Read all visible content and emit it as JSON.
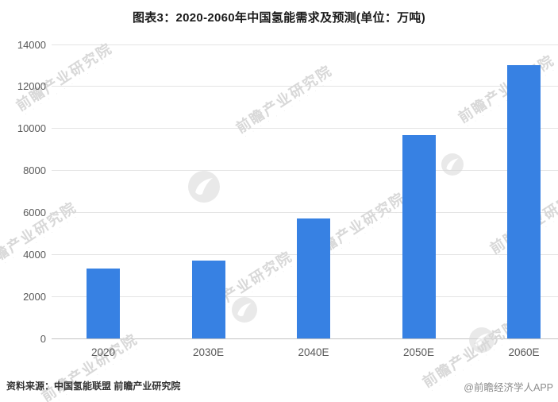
{
  "title": "图表3：2020-2060年中国氢能需求及预测(单位：万吨)",
  "chart_data": {
    "type": "bar",
    "title": "图表3：2020-2060年中国氢能需求及预测(单位：万吨)",
    "unit": "万吨",
    "categories": [
      "2020",
      "2030E",
      "2040E",
      "2050E",
      "2060E"
    ],
    "values": [
      3342,
      3715,
      5700,
      9690,
      13030
    ],
    "xlabel": "",
    "ylabel": "",
    "ylim": [
      0,
      14000
    ],
    "yticks": [
      0,
      2000,
      4000,
      6000,
      8000,
      10000,
      12000,
      14000
    ],
    "grid": true,
    "legend": false,
    "bar_color": "#3781E3"
  },
  "footer": {
    "source": "资料来源：中国氢能联盟 前瞻产业研究院",
    "credit": "@前瞻经济学人APP"
  },
  "watermark": {
    "text": "前瞻产业研究院",
    "logo": "qianzhan-logo"
  },
  "colors": {
    "bar": "#3781E3",
    "gridline": "#e4e4e4",
    "axis_line": "#c4c4c4",
    "tick_text": "#595959",
    "title_text": "#1a1a1a",
    "source_text": "#333333",
    "credit_text": "#8c8c8c",
    "watermark_text": "#d8d8d8"
  }
}
